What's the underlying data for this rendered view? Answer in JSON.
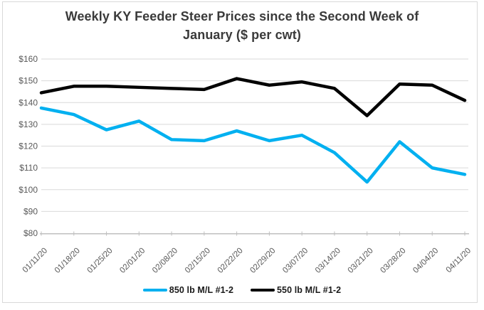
{
  "title_lines": [
    "Weekly KY Feeder Steer Prices since the Second Week of",
    "January ($ per cwt)"
  ],
  "chart_data": {
    "type": "line",
    "title": "Weekly KY Feeder Steer Prices since the Second Week of January ($ per cwt)",
    "categories": [
      "01/11/20",
      "01/18/20",
      "01/25/20",
      "02/01/20",
      "02/08/20",
      "02/15/20",
      "02/22/20",
      "02/29/20",
      "03/07/20",
      "03/14/20",
      "03/21/20",
      "03/28/20",
      "04/04/20",
      "04/11/20"
    ],
    "series": [
      {
        "id": "850lb",
        "name": "850 lb M/L #1-2",
        "color": "#00B0F0",
        "values": [
          137.5,
          134.5,
          127.5,
          131.5,
          123,
          122.5,
          127,
          122.5,
          125,
          117,
          103.5,
          122,
          110,
          107
        ]
      },
      {
        "id": "550lb",
        "name": "550 lb M/L #1-2",
        "color": "#000000",
        "values": [
          144.5,
          147.5,
          147.5,
          147,
          146.5,
          146,
          151,
          148,
          149.5,
          146.5,
          134,
          148.5,
          148,
          141
        ]
      }
    ],
    "xlabel": "",
    "ylabel": "",
    "ylim": [
      80,
      160
    ],
    "ytick_step": 10,
    "ytick_labels": [
      "$80",
      "$90",
      "$100",
      "$110",
      "$120",
      "$130",
      "$140",
      "$150",
      "$160"
    ],
    "grid": true,
    "legend_position": "bottom"
  },
  "colors": {
    "gridline": "#D9D9D9",
    "axis_line": "#BFBFBF",
    "tick_label": "#595959",
    "title_text": "#3A3A3A",
    "legend_text": "#1A1A1A",
    "background": "#FFFFFF",
    "frame_border": "#D9D9D9"
  }
}
